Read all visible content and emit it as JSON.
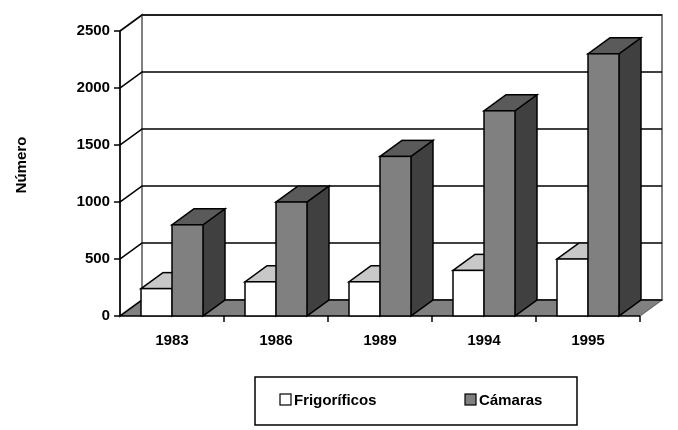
{
  "chart_data": {
    "type": "bar3d",
    "categories": [
      "1983",
      "1986",
      "1989",
      "1994",
      "1995"
    ],
    "series": [
      {
        "name": "Frigoríficos",
        "color": "#ffffff",
        "values": [
          240,
          300,
          300,
          400,
          500
        ]
      },
      {
        "name": "Cámaras",
        "color": "#808080",
        "values": [
          800,
          1000,
          1400,
          1800,
          2300
        ]
      }
    ],
    "ylabel": "Número",
    "ylim": [
      0,
      2500
    ],
    "yticks": [
      0,
      500,
      1000,
      1500,
      2000,
      2500
    ],
    "grid": true
  }
}
